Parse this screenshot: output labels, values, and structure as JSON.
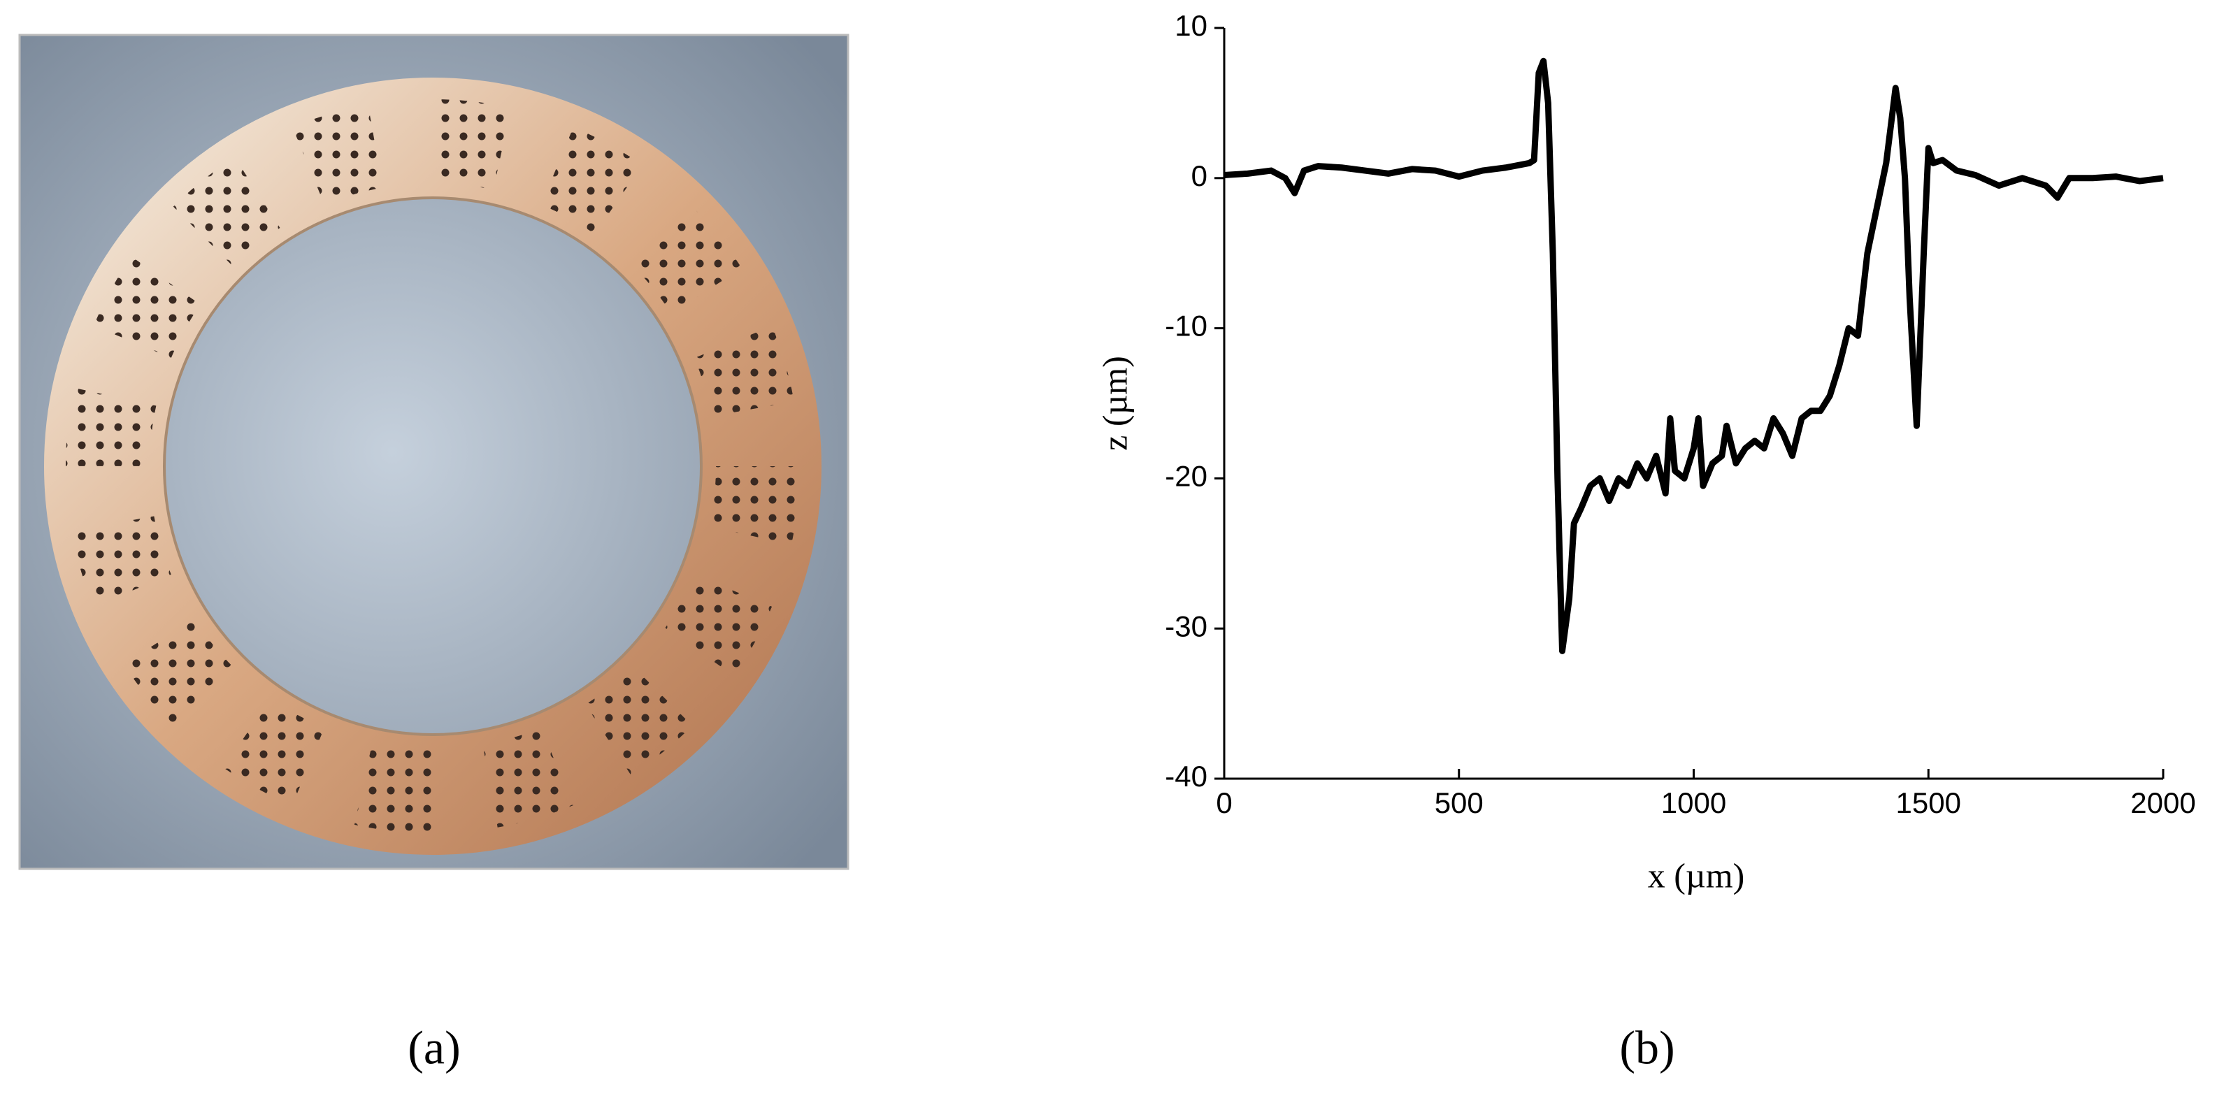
{
  "panels": [
    "(a)",
    "(b)"
  ],
  "chart_data": {
    "type": "line",
    "xlabel": "x (µm)",
    "ylabel": "z (µm)",
    "xlim": [
      0,
      2000
    ],
    "xticks": [
      0,
      500,
      1000,
      1500,
      2000
    ],
    "ylim": [
      -40,
      10
    ],
    "yticks": [
      -40,
      -30,
      -20,
      -10,
      0,
      10
    ],
    "x": [
      0,
      50,
      100,
      130,
      150,
      170,
      200,
      250,
      300,
      350,
      400,
      450,
      500,
      550,
      600,
      650,
      660,
      670,
      680,
      690,
      700,
      710,
      720,
      735,
      745,
      760,
      780,
      800,
      820,
      840,
      860,
      880,
      900,
      920,
      940,
      950,
      960,
      980,
      1000,
      1010,
      1020,
      1040,
      1060,
      1070,
      1090,
      1110,
      1130,
      1150,
      1170,
      1190,
      1210,
      1230,
      1250,
      1270,
      1290,
      1310,
      1330,
      1350,
      1370,
      1390,
      1410,
      1430,
      1440,
      1450,
      1460,
      1475,
      1490,
      1500,
      1510,
      1530,
      1560,
      1600,
      1650,
      1700,
      1750,
      1775,
      1800,
      1850,
      1900,
      1950,
      2000
    ],
    "series": [
      {
        "color": "#000000",
        "values": [
          0.2,
          0.3,
          0.5,
          0,
          -1,
          0.5,
          0.8,
          0.7,
          0.5,
          0.3,
          0.6,
          0.5,
          0.1,
          0.5,
          0.7,
          1.0,
          1.2,
          7,
          7.8,
          5,
          -5,
          -20,
          -31.5,
          -28,
          -23,
          -22,
          -20.5,
          -20,
          -21.5,
          -20,
          -20.5,
          -19,
          -20,
          -18.5,
          -21,
          -16,
          -19.5,
          -20,
          -18,
          -16,
          -20.5,
          -19,
          -18.5,
          -16.5,
          -19,
          -18,
          -17.5,
          -18,
          -16,
          -17,
          -18.5,
          -16,
          -15.5,
          -15.5,
          -14.5,
          -12.5,
          -10,
          -10.5,
          -5,
          -2,
          1,
          6,
          4,
          0,
          -8,
          -16.5,
          -5,
          2,
          1,
          1.2,
          0.5,
          0.2,
          -0.5,
          0,
          -0.5,
          -1.3,
          0,
          0,
          0.1,
          -0.2,
          0
        ]
      }
    ]
  }
}
